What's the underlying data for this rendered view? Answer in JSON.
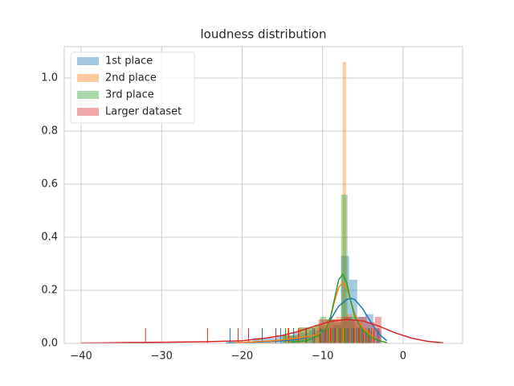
{
  "chart_data": {
    "type": "hist",
    "title": "loudness distribution",
    "xlim": [
      -42.1,
      7.4
    ],
    "ylim": [
      0,
      1.118
    ],
    "xticks": [
      {
        "value": -40,
        "label": "−40"
      },
      {
        "value": -30,
        "label": "−30"
      },
      {
        "value": -20,
        "label": "−20"
      },
      {
        "value": -10,
        "label": "−10"
      },
      0
    ],
    "yticks": [
      {
        "value": 0,
        "label": "0.0"
      },
      {
        "value": 0.2,
        "label": "0.2"
      },
      {
        "value": 0.4,
        "label": "0.4"
      },
      {
        "value": 0.6,
        "label": "0.6"
      },
      {
        "value": 0.8,
        "label": "0.8"
      },
      {
        "value": 1.0,
        "label": "1.0"
      }
    ],
    "grid": true,
    "legend": "upper left",
    "series": [
      {
        "name": "1st place",
        "color": "#1f77b4",
        "bins": [
          -21.7,
          -18.7,
          -15.7,
          -13.7,
          -11.7,
          -9.7,
          -8.7,
          -7.7,
          -6.7,
          -5.7,
          -4.7,
          -3.7,
          -2.7
        ],
        "counts": [
          0.005,
          0.02,
          0.03,
          0.04,
          0.05,
          0.06,
          0.07,
          0.33,
          0.24,
          0.1,
          0.11,
          0.05
        ],
        "kde_x": [
          -22,
          -18,
          -15,
          -13,
          -11,
          -10,
          -9,
          -8,
          -7,
          -6.5,
          -6,
          -5,
          -4,
          -3,
          -2
        ],
        "kde_y": [
          0.002,
          0.005,
          0.01,
          0.015,
          0.03,
          0.05,
          0.09,
          0.14,
          0.165,
          0.17,
          0.165,
          0.13,
          0.08,
          0.035,
          0.01
        ],
        "rug": [
          -21.5,
          -17.5,
          -15.2,
          -13.6,
          -11.2,
          -9.8,
          -8.5,
          -7.8,
          -7.3,
          -6.9,
          -6.4,
          -5.8,
          -5.1,
          -4.6,
          -3.9,
          -3.2
        ]
      },
      {
        "name": "2nd place",
        "color": "#ff7f0e",
        "bins": [
          -21,
          -15,
          -13,
          -11,
          -9.5,
          -8.3,
          -7.5,
          -7.1,
          -6.3,
          -5,
          -3.5
        ],
        "counts": [
          0.003,
          0.03,
          0.06,
          0.07,
          0.09,
          0.1,
          1.06,
          0.11,
          0.08,
          0.05
        ],
        "kde_x": [
          -21,
          -16,
          -13,
          -11,
          -10,
          -9,
          -8.5,
          -8,
          -7.5,
          -7,
          -6.5,
          -6,
          -5,
          -4,
          -3,
          -2
        ],
        "kde_y": [
          0.002,
          0.01,
          0.02,
          0.03,
          0.045,
          0.1,
          0.16,
          0.21,
          0.23,
          0.21,
          0.16,
          0.11,
          0.06,
          0.03,
          0.01,
          0.003
        ],
        "rug": [
          -14.3,
          -12.8,
          -10.6,
          -9.1,
          -8.2,
          -7.6,
          -7.4,
          -7.2,
          -6.6,
          -5.9,
          -4.8,
          -3.8
        ]
      },
      {
        "name": "3rd place",
        "color": "#2ca02c",
        "bins": [
          -15,
          -13,
          -11,
          -10.3,
          -9.5,
          -8.5,
          -7.7,
          -6.9,
          -6,
          -5,
          -4
        ],
        "counts": [
          0.03,
          0.06,
          0.07,
          0.1,
          0.09,
          0.08,
          0.56,
          0.1,
          0.06,
          0.04
        ],
        "kde_x": [
          -14,
          -12,
          -10.5,
          -9.5,
          -9,
          -8.5,
          -8,
          -7.5,
          -7,
          -6.5,
          -6,
          -5,
          -4,
          -3,
          -2
        ],
        "kde_y": [
          0.005,
          0.01,
          0.03,
          0.06,
          0.1,
          0.17,
          0.24,
          0.26,
          0.23,
          0.16,
          0.1,
          0.05,
          0.025,
          0.01,
          0.003
        ],
        "rug": [
          -14.6,
          -12.1,
          -10.2,
          -9.3,
          -8.7,
          -8.0,
          -7.6,
          -7.3,
          -7.0,
          -6.2,
          -5.4,
          -4.3
        ]
      },
      {
        "name": "Larger dataset",
        "color": "#d62728",
        "bins": [
          -10.5,
          -9.5,
          -8.5,
          -7.5,
          -6.5,
          -5.5,
          -4.5,
          -3.5,
          -2.7
        ],
        "counts": [
          0.09,
          0.09,
          0.09,
          0.1,
          0.09,
          0.1,
          0.08,
          0.1
        ],
        "kde_x": [
          -40,
          -35,
          -30,
          -25,
          -20,
          -17,
          -15,
          -13,
          -11,
          -9,
          -7,
          -5,
          -3,
          -1,
          1,
          3,
          5
        ],
        "kde_y": [
          0.001,
          0.003,
          0.004,
          0.006,
          0.01,
          0.02,
          0.03,
          0.045,
          0.065,
          0.083,
          0.09,
          0.085,
          0.065,
          0.04,
          0.02,
          0.008,
          0.002
        ],
        "rug": [
          -32,
          -24.3,
          -20.5,
          -19.2,
          -15.8,
          -14.2,
          -13,
          -12,
          -11,
          -10.3,
          -9.6,
          -9,
          -8.4,
          -7.8,
          -7.2,
          -6.7,
          -6.1,
          -5.5,
          -4.9,
          -4.2,
          -3.6,
          -3
        ]
      }
    ]
  }
}
